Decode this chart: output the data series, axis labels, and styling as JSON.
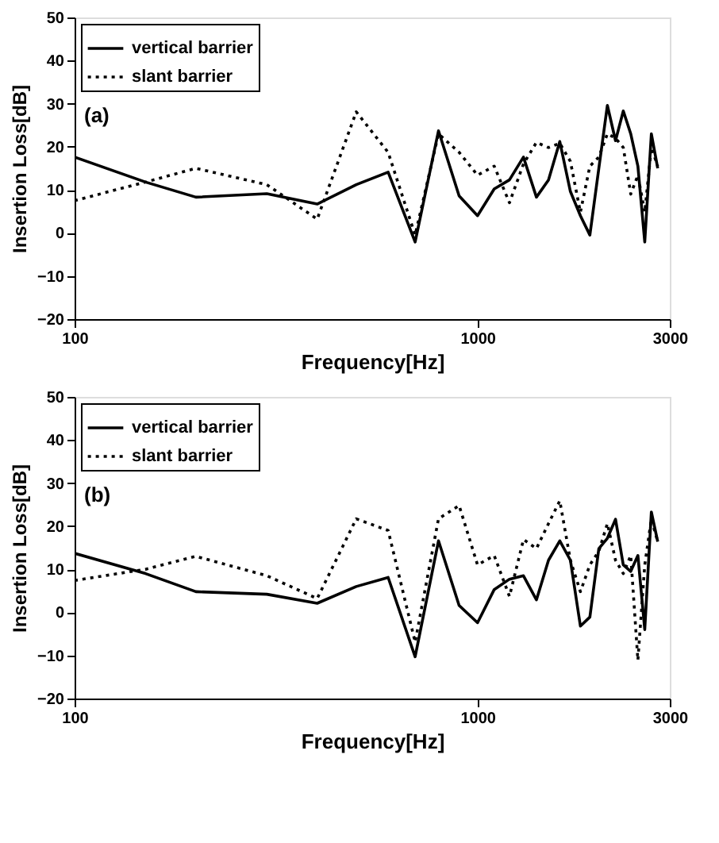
{
  "chart_data": [
    {
      "type": "line",
      "xlabel": "Frequency[Hz]",
      "ylabel": "Insertion Loss[dB]",
      "annotations": [
        "(a)"
      ],
      "x": [
        100,
        150,
        200,
        300,
        400,
        500,
        600,
        700,
        800,
        900,
        1000,
        1100,
        1200,
        1300,
        1400,
        1500,
        1600,
        1700,
        1800,
        1900,
        2000,
        2100,
        2200,
        2300,
        2400,
        2500,
        2600,
        2700,
        2800
      ],
      "series": [
        {
          "name": "vertical barrier",
          "color": "#000000",
          "line_style": "solid",
          "values": [
            17.6,
            11.8,
            8.3,
            9.1,
            6.7,
            11.2,
            14.1,
            -2.1,
            23.7,
            8.6,
            4.0,
            10.2,
            12.3,
            17.6,
            8.3,
            12.3,
            21.2,
            9.6,
            4,
            -0.5,
            15,
            29.6,
            21.4,
            28.3,
            23,
            15.5,
            -2.1,
            23,
            15
          ]
        },
        {
          "name": "slant barrier",
          "color": "#000000",
          "line_style": "dotted",
          "values": [
            7.5,
            11.8,
            15,
            11.2,
            3.2,
            28.1,
            18.7,
            -0.5,
            23,
            18.7,
            13.4,
            15.5,
            7,
            16,
            21,
            19.8,
            20.8,
            16.6,
            4.8,
            15.5,
            17.6,
            23,
            22,
            19.8,
            9,
            13.4,
            4.8,
            19.8,
            15.5
          ]
        }
      ],
      "log": "x",
      "xlim": [
        100,
        3000
      ],
      "xticks": [
        100,
        1000,
        3000
      ],
      "ylim": [
        -20,
        50
      ],
      "yticks": [
        -20,
        -10,
        0,
        10,
        20,
        30,
        40,
        50
      ],
      "grid": false,
      "legend": "top left"
    },
    {
      "type": "line",
      "xlabel": "Frequency[Hz]",
      "ylabel": "Insertion Loss[dB]",
      "annotations": [
        "(b)"
      ],
      "x": [
        100,
        150,
        200,
        300,
        400,
        500,
        600,
        700,
        800,
        900,
        1000,
        1100,
        1200,
        1300,
        1400,
        1500,
        1600,
        1700,
        1800,
        1900,
        2000,
        2100,
        2200,
        2300,
        2400,
        2500,
        2600,
        2700,
        2800
      ],
      "series": [
        {
          "name": "vertical barrier",
          "color": "#000000",
          "line_style": "solid",
          "values": [
            13.7,
            9,
            4.8,
            4.2,
            2.1,
            6,
            8.1,
            -10.3,
            16.6,
            1.6,
            -2.4,
            5.3,
            7.7,
            8.5,
            2.9,
            12.1,
            16.6,
            12.1,
            -3.2,
            -1.1,
            14.8,
            17.2,
            21.6,
            11,
            9.5,
            13.2,
            -4,
            23.3,
            16.4
          ]
        },
        {
          "name": "slant barrier",
          "color": "#000000",
          "line_style": "dotted",
          "values": [
            7.4,
            10,
            13,
            8.5,
            3.2,
            21.7,
            19,
            -6.9,
            21.7,
            24.8,
            11,
            13.2,
            3.7,
            16.9,
            14.8,
            20.6,
            25.9,
            12.1,
            4.8,
            11,
            14.2,
            20.6,
            12.1,
            9,
            13.2,
            -11.1,
            11,
            21.7,
            16.4
          ]
        }
      ],
      "log": "x",
      "xlim": [
        100,
        3000
      ],
      "xticks": [
        100,
        1000,
        3000
      ],
      "ylim": [
        -20,
        50
      ],
      "yticks": [
        -20,
        -10,
        0,
        10,
        20,
        30,
        40,
        50
      ],
      "grid": false,
      "legend": "top left"
    }
  ]
}
